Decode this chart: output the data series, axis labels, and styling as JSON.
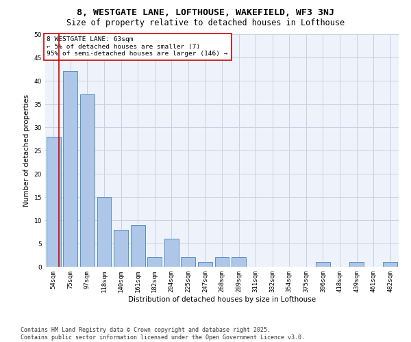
{
  "title_line1": "8, WESTGATE LANE, LOFTHOUSE, WAKEFIELD, WF3 3NJ",
  "title_line2": "Size of property relative to detached houses in Lofthouse",
  "xlabel": "Distribution of detached houses by size in Lofthouse",
  "ylabel": "Number of detached properties",
  "categories": [
    "54sqm",
    "75sqm",
    "97sqm",
    "118sqm",
    "140sqm",
    "161sqm",
    "182sqm",
    "204sqm",
    "225sqm",
    "247sqm",
    "268sqm",
    "289sqm",
    "311sqm",
    "332sqm",
    "354sqm",
    "375sqm",
    "396sqm",
    "418sqm",
    "439sqm",
    "461sqm",
    "482sqm"
  ],
  "values": [
    28,
    42,
    37,
    15,
    8,
    9,
    2,
    6,
    2,
    1,
    2,
    2,
    0,
    0,
    0,
    0,
    1,
    0,
    1,
    0,
    1
  ],
  "bar_color": "#aec6e8",
  "bar_edge_color": "#5a8fc0",
  "annotation_line1": "8 WESTGATE LANE: 63sqm",
  "annotation_line2": "← 5% of detached houses are smaller (7)",
  "annotation_line3": "95% of semi-detached houses are larger (146) →",
  "vline_color": "#cc0000",
  "box_color": "#cc0000",
  "ylim": [
    0,
    50
  ],
  "yticks": [
    0,
    5,
    10,
    15,
    20,
    25,
    30,
    35,
    40,
    45,
    50
  ],
  "grid_color": "#c8d0e0",
  "background_color": "#eef2fb",
  "footnote": "Contains HM Land Registry data © Crown copyright and database right 2025.\nContains public sector information licensed under the Open Government Licence v3.0.",
  "title_fontsize": 9.5,
  "subtitle_fontsize": 8.5,
  "label_fontsize": 7.5,
  "tick_fontsize": 6.5,
  "annotation_fontsize": 6.8,
  "footnote_fontsize": 6.0
}
